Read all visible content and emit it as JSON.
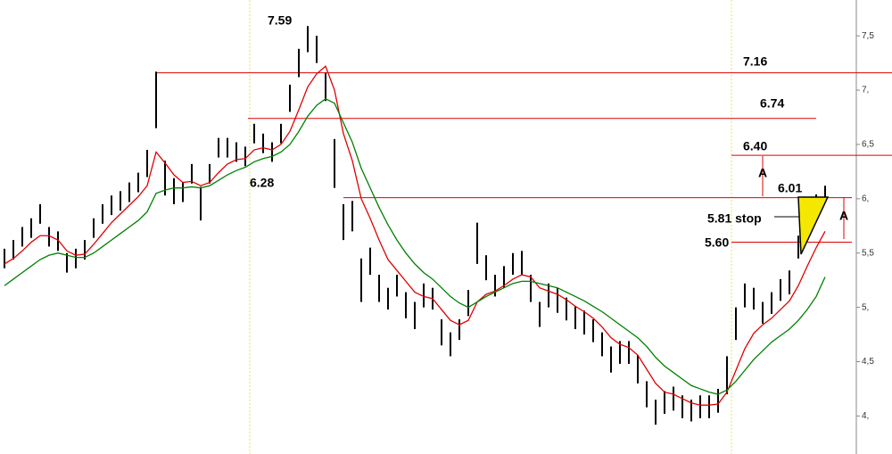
{
  "chart_data": {
    "type": "range-bar",
    "high": [
      5.54,
      5.62,
      5.74,
      5.82,
      5.95,
      5.74,
      5.7,
      5.5,
      5.54,
      5.62,
      5.82,
      5.95,
      6.03,
      6.07,
      6.15,
      6.24,
      6.45,
      7.17,
      6.35,
      6.19,
      6.15,
      6.32,
      6.11,
      6.32,
      6.56,
      6.56,
      6.52,
      6.48,
      6.69,
      6.6,
      6.52,
      6.69,
      7.05,
      7.38,
      7.59,
      7.5,
      7.16,
      6.55,
      5.95,
      5.98,
      5.45,
      5.55,
      5.3,
      5.18,
      5.3,
      5.14,
      5.05,
      5.22,
      5.18,
      4.89,
      4.77,
      4.89,
      5.16,
      5.78,
      5.48,
      5.3,
      5.38,
      5.5,
      5.52,
      5.3,
      5.05,
      5.22,
      5.18,
      5.09,
      5.01,
      4.97,
      4.89,
      4.77,
      4.64,
      4.69,
      4.69,
      4.56,
      4.32,
      4.15,
      4.23,
      4.27,
      4.19,
      4.15,
      4.19,
      4.19,
      4.25,
      4.55,
      5.0,
      5.22,
      5.18,
      5.05,
      5.14,
      5.26,
      5.34,
      5.66,
      5.98,
      6.04,
      6.12
    ],
    "low": [
      5.36,
      5.44,
      5.56,
      5.64,
      5.77,
      5.56,
      5.52,
      5.32,
      5.36,
      5.44,
      5.64,
      5.77,
      5.85,
      5.89,
      5.97,
      6.06,
      6.2,
      6.65,
      6.03,
      5.95,
      5.97,
      6.14,
      5.8,
      6.14,
      6.38,
      6.38,
      6.34,
      6.3,
      6.51,
      6.42,
      6.34,
      6.51,
      6.8,
      7.12,
      7.35,
      7.25,
      6.9,
      6.1,
      5.62,
      5.7,
      5.05,
      5.3,
      5.05,
      4.98,
      5.1,
      4.9,
      4.8,
      5.0,
      4.98,
      4.65,
      4.55,
      4.7,
      4.92,
      5.4,
      5.25,
      5.1,
      5.18,
      5.3,
      5.3,
      5.05,
      4.82,
      5.0,
      4.95,
      4.88,
      4.8,
      4.75,
      4.68,
      4.55,
      4.4,
      4.48,
      4.48,
      4.3,
      4.08,
      3.92,
      4.02,
      4.05,
      3.98,
      3.95,
      3.98,
      3.98,
      4.03,
      4.2,
      4.7,
      5.0,
      4.98,
      4.85,
      4.94,
      5.06,
      5.12,
      5.45,
      5.75,
      5.84,
      5.98
    ],
    "bar_color": "#000000",
    "moving_averages": [
      {
        "color": "#e00000",
        "values": [
          5.4,
          5.45,
          5.52,
          5.6,
          5.66,
          5.66,
          5.62,
          5.52,
          5.48,
          5.49,
          5.58,
          5.68,
          5.78,
          5.86,
          5.94,
          6.02,
          6.12,
          6.43,
          6.33,
          6.22,
          6.15,
          6.16,
          6.12,
          6.15,
          6.24,
          6.32,
          6.36,
          6.37,
          6.45,
          6.47,
          6.45,
          6.5,
          6.62,
          6.82,
          7.03,
          7.15,
          7.22,
          7.0,
          6.6,
          6.35,
          6.0,
          5.82,
          5.62,
          5.44,
          5.34,
          5.24,
          5.14,
          5.1,
          5.08,
          4.98,
          4.88,
          4.84,
          4.88,
          5.05,
          5.12,
          5.15,
          5.2,
          5.26,
          5.3,
          5.28,
          5.18,
          5.15,
          5.12,
          5.07,
          5.01,
          4.96,
          4.9,
          4.82,
          4.72,
          4.66,
          4.63,
          4.56,
          4.43,
          4.3,
          4.22,
          4.2,
          4.16,
          4.12,
          4.1,
          4.1,
          4.11,
          4.22,
          4.42,
          4.62,
          4.76,
          4.84,
          4.9,
          4.98,
          5.06,
          5.2,
          5.38,
          5.55,
          5.7
        ]
      },
      {
        "color": "#008000",
        "values": [
          5.2,
          5.26,
          5.32,
          5.38,
          5.44,
          5.48,
          5.5,
          5.48,
          5.46,
          5.46,
          5.5,
          5.56,
          5.62,
          5.68,
          5.74,
          5.8,
          5.88,
          6.05,
          6.08,
          6.1,
          6.1,
          6.11,
          6.1,
          6.12,
          6.17,
          6.22,
          6.26,
          6.29,
          6.34,
          6.37,
          6.39,
          6.43,
          6.5,
          6.62,
          6.76,
          6.86,
          6.92,
          6.88,
          6.7,
          6.52,
          6.28,
          6.1,
          5.92,
          5.76,
          5.62,
          5.5,
          5.4,
          5.32,
          5.26,
          5.18,
          5.1,
          5.04,
          5.0,
          5.05,
          5.1,
          5.14,
          5.18,
          5.22,
          5.24,
          5.24,
          5.22,
          5.2,
          5.18,
          5.14,
          5.1,
          5.06,
          5.01,
          4.96,
          4.9,
          4.84,
          4.78,
          4.72,
          4.64,
          4.54,
          4.46,
          4.4,
          4.34,
          4.28,
          4.25,
          4.22,
          4.2,
          4.24,
          4.32,
          4.42,
          4.52,
          4.6,
          4.68,
          4.74,
          4.8,
          4.88,
          4.98,
          5.1,
          5.28
        ]
      }
    ],
    "ylim": [
      3.65,
      7.83
    ],
    "yticks": [
      {
        "value": 4,
        "label": "4,"
      },
      {
        "value": 4.5,
        "label": "4,5"
      },
      {
        "value": 5,
        "label": "5,"
      },
      {
        "value": 5.5,
        "label": "5,5"
      },
      {
        "value": 6,
        "label": "6,"
      },
      {
        "value": 6.5,
        "label": "6,5"
      },
      {
        "value": 7,
        "label": "7,"
      },
      {
        "value": 7.5,
        "label": "7,5"
      }
    ],
    "levels": [
      {
        "value": 7.16,
        "label": "7.16"
      },
      {
        "value": 6.74,
        "label": "6.74"
      },
      {
        "value": 6.4,
        "label": "6.40"
      },
      {
        "value": 6.01,
        "label": "6.01"
      },
      {
        "value": 5.6,
        "label": "5.60"
      }
    ],
    "level_color": "#e00000",
    "annotations": [
      {
        "text": "7.59"
      },
      {
        "text": "6.28"
      },
      {
        "text": "5.81 stop"
      },
      {
        "text": "A"
      },
      {
        "text": "A"
      }
    ]
  }
}
